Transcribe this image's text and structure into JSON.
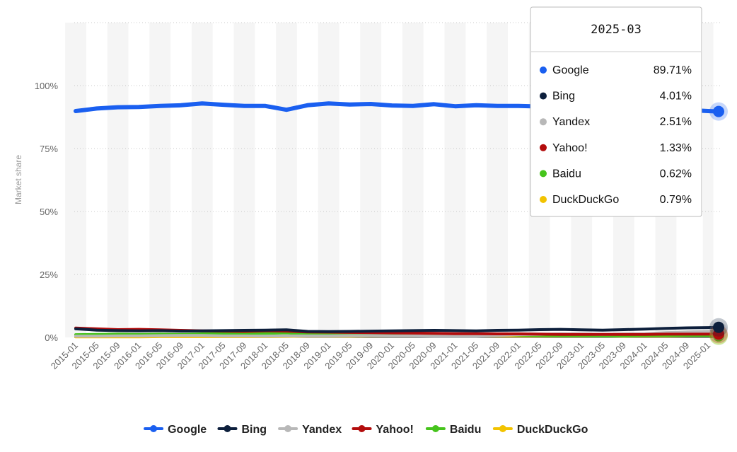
{
  "chart_data": {
    "type": "line",
    "ylabel": "Market share",
    "ylim": [
      0,
      100
    ],
    "yticks": [
      0,
      25,
      50,
      75,
      100
    ],
    "ytick_labels": [
      "0%",
      "25%",
      "50%",
      "75%",
      "100%"
    ],
    "grid": "horizontal dotted",
    "legend_position": "bottom-center",
    "x_ticks": [
      "2015-01",
      "2015-05",
      "2015-09",
      "2016-01",
      "2016-05",
      "2016-09",
      "2017-01",
      "2017-05",
      "2017-09",
      "2018-01",
      "2018-05",
      "2018-09",
      "2019-01",
      "2019-05",
      "2019-09",
      "2020-01",
      "2020-05",
      "2020-09",
      "2021-01",
      "2021-05",
      "2021-09",
      "2022-01",
      "2022-05",
      "2022-09",
      "2023-01",
      "2023-05",
      "2023-09",
      "2024-01",
      "2024-05",
      "2024-09",
      "2025-01"
    ],
    "x": [
      "2015-01",
      "2015-05",
      "2015-09",
      "2016-01",
      "2016-05",
      "2016-09",
      "2017-01",
      "2017-05",
      "2017-09",
      "2018-01",
      "2018-05",
      "2018-09",
      "2019-01",
      "2019-05",
      "2019-09",
      "2020-01",
      "2020-05",
      "2020-09",
      "2021-01",
      "2021-05",
      "2021-09",
      "2022-01",
      "2022-05",
      "2022-09",
      "2023-01",
      "2023-05",
      "2023-09",
      "2024-01",
      "2024-05",
      "2024-09",
      "2025-01",
      "2025-03"
    ],
    "series": [
      {
        "name": "Google",
        "color": "#1a5ff0",
        "values": [
          89.9,
          90.9,
          91.4,
          91.5,
          91.9,
          92.2,
          92.9,
          92.4,
          91.9,
          91.9,
          90.4,
          92.2,
          92.9,
          92.5,
          92.7,
          92.1,
          91.9,
          92.6,
          91.8,
          92.2,
          91.9,
          91.9,
          91.7,
          91.2,
          91.0,
          90.9,
          90.8,
          90.7,
          90.5,
          90.3,
          89.9,
          89.71
        ]
      },
      {
        "name": "Bing",
        "color": "#0d1f3c",
        "values": [
          3.4,
          2.9,
          2.7,
          2.6,
          2.7,
          2.5,
          2.6,
          2.7,
          2.8,
          2.9,
          3.0,
          2.4,
          2.3,
          2.4,
          2.5,
          2.6,
          2.7,
          2.8,
          2.7,
          2.6,
          2.8,
          2.9,
          3.1,
          3.2,
          3.0,
          2.9,
          3.1,
          3.3,
          3.6,
          3.8,
          3.9,
          4.01
        ]
      },
      {
        "name": "Yandex",
        "color": "#b8b8b8",
        "values": [
          0.5,
          0.5,
          0.6,
          0.6,
          0.7,
          0.8,
          0.8,
          0.6,
          0.6,
          0.5,
          0.6,
          0.6,
          0.6,
          0.7,
          0.7,
          0.6,
          0.6,
          0.5,
          0.5,
          0.5,
          0.8,
          1.1,
          1.2,
          1.4,
          1.3,
          1.2,
          1.3,
          1.4,
          1.9,
          2.2,
          2.4,
          2.51
        ]
      },
      {
        "name": "Yahoo!",
        "color": "#b30c0c",
        "values": [
          3.7,
          3.4,
          3.1,
          3.2,
          3.0,
          2.8,
          2.6,
          2.5,
          2.4,
          2.6,
          2.5,
          2.2,
          2.1,
          2.0,
          1.9,
          1.8,
          1.7,
          1.6,
          1.5,
          1.5,
          1.4,
          1.4,
          1.3,
          1.2,
          1.2,
          1.2,
          1.2,
          1.2,
          1.3,
          1.3,
          1.3,
          1.33
        ]
      },
      {
        "name": "Baidu",
        "color": "#46c41c",
        "values": [
          1.1,
          1.2,
          1.3,
          1.2,
          1.3,
          1.2,
          1.4,
          1.5,
          1.6,
          1.6,
          1.8,
          1.3,
          1.2,
          1.1,
          1.0,
          1.0,
          1.0,
          1.0,
          1.0,
          1.1,
          1.1,
          0.9,
          0.8,
          0.7,
          0.7,
          0.6,
          0.6,
          0.8,
          0.8,
          0.8,
          0.7,
          0.62
        ]
      },
      {
        "name": "DuckDuckGo",
        "color": "#f2c300",
        "values": [
          0.2,
          0.2,
          0.2,
          0.2,
          0.3,
          0.3,
          0.3,
          0.3,
          0.3,
          0.3,
          0.4,
          0.5,
          0.5,
          0.5,
          0.6,
          0.6,
          0.6,
          0.7,
          0.7,
          0.6,
          0.6,
          0.6,
          0.6,
          0.6,
          0.6,
          0.6,
          0.5,
          0.6,
          0.6,
          0.7,
          0.7,
          0.79
        ]
      }
    ],
    "tooltip": {
      "title": "2025-03",
      "rows": [
        {
          "label": "Google",
          "value": "89.71%",
          "color": "#1a5ff0"
        },
        {
          "label": "Bing",
          "value": "4.01%",
          "color": "#0d1f3c"
        },
        {
          "label": "Yandex",
          "value": "2.51%",
          "color": "#b8b8b8"
        },
        {
          "label": "Yahoo!",
          "value": "1.33%",
          "color": "#b30c0c"
        },
        {
          "label": "Baidu",
          "value": "0.62%",
          "color": "#46c41c"
        },
        {
          "label": "DuckDuckGo",
          "value": "0.79%",
          "color": "#f2c300"
        }
      ]
    }
  }
}
